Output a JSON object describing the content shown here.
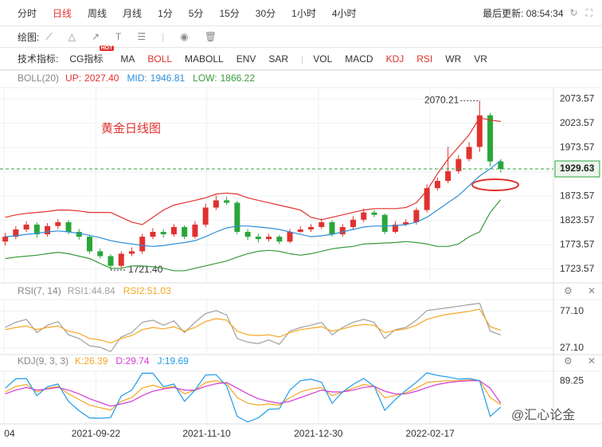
{
  "toolbar": {
    "periods": [
      "分时",
      "日线",
      "周线",
      "月线",
      "1分",
      "5分",
      "15分",
      "30分",
      "1小时",
      "4小时"
    ],
    "active_period_index": 1,
    "updated": "最后更新: 08:54:34",
    "draw_label": "绘图:",
    "indicator_label": "技术指标:",
    "indicators": [
      "CG指标",
      "MA",
      "BOLL",
      "MABOLL",
      "ENV",
      "SAR",
      "VOL",
      "MACD",
      "KDJ",
      "RSI",
      "WR",
      "VR"
    ],
    "active_indicator_indexes": [
      2,
      8,
      9
    ],
    "separator_after_index": 5,
    "hot_badge": "HOT"
  },
  "watermark": "@汇心论金",
  "chart_data": [
    {
      "type": "candlestick",
      "title": "黄金日线图",
      "indicator": "BOLL(20)",
      "up_color": "#e0322f",
      "down_color": "#2aa63a",
      "open": [
        1780,
        1790,
        1805,
        1815,
        1795,
        1812,
        1820,
        1800,
        1790,
        1760,
        1750,
        1730,
        1755,
        1760,
        1790,
        1800,
        1795,
        1810,
        1790,
        1815,
        1850,
        1865,
        1860,
        1800,
        1790,
        1785,
        1790,
        1780,
        1800,
        1805,
        1810,
        1820,
        1795,
        1810,
        1825,
        1840,
        1835,
        1800,
        1815,
        1820,
        1845,
        1890,
        1905,
        1925,
        1950,
        1975,
        2040,
        1945
      ],
      "high": [
        1798,
        1812,
        1822,
        1820,
        1818,
        1826,
        1824,
        1806,
        1794,
        1766,
        1754,
        1760,
        1768,
        1796,
        1808,
        1806,
        1816,
        1814,
        1822,
        1858,
        1875,
        1872,
        1864,
        1806,
        1796,
        1796,
        1794,
        1806,
        1812,
        1816,
        1828,
        1824,
        1816,
        1832,
        1848,
        1845,
        1838,
        1822,
        1826,
        1850,
        1898,
        1912,
        1975,
        1958,
        1985,
        2070.21,
        2045,
        1950
      ],
      "low": [
        1772,
        1785,
        1800,
        1788,
        1790,
        1806,
        1795,
        1784,
        1755,
        1745,
        1721.4,
        1726,
        1750,
        1755,
        1785,
        1788,
        1790,
        1785,
        1786,
        1810,
        1845,
        1855,
        1795,
        1783,
        1778,
        1780,
        1775,
        1776,
        1798,
        1800,
        1806,
        1790,
        1790,
        1805,
        1820,
        1830,
        1795,
        1797,
        1812,
        1815,
        1840,
        1885,
        1900,
        1920,
        1945,
        1965,
        1935,
        1922
      ],
      "close": [
        1790,
        1805,
        1815,
        1795,
        1812,
        1820,
        1800,
        1790,
        1760,
        1750,
        1730,
        1755,
        1760,
        1790,
        1800,
        1795,
        1810,
        1790,
        1815,
        1850,
        1865,
        1860,
        1800,
        1790,
        1785,
        1790,
        1780,
        1800,
        1805,
        1810,
        1820,
        1795,
        1810,
        1825,
        1840,
        1835,
        1800,
        1815,
        1820,
        1845,
        1890,
        1905,
        1925,
        1950,
        1975,
        2040,
        1945,
        1929.63
      ],
      "max_label": "2070.21",
      "min_label": "1721.40",
      "series": [
        {
          "name": "UP:",
          "color": "#e0322f",
          "current_label": "2027.40",
          "values": [
            1830,
            1835,
            1838,
            1840,
            1842,
            1845,
            1845,
            1843,
            1840,
            1840,
            1840,
            1830,
            1820,
            1815,
            1830,
            1845,
            1855,
            1860,
            1865,
            1870,
            1878,
            1880,
            1878,
            1870,
            1865,
            1860,
            1855,
            1850,
            1845,
            1830,
            1825,
            1830,
            1835,
            1840,
            1845,
            1848,
            1848,
            1848,
            1850,
            1860,
            1885,
            1920,
            1950,
            1975,
            2000,
            2035,
            2030,
            2027.4
          ]
        },
        {
          "name": "MID:",
          "color": "#2f8fd8",
          "current_label": "1946.81",
          "values": [
            1790,
            1792,
            1795,
            1797,
            1800,
            1802,
            1800,
            1797,
            1793,
            1788,
            1782,
            1778,
            1775,
            1772,
            1770,
            1772,
            1775,
            1778,
            1782,
            1790,
            1800,
            1808,
            1812,
            1812,
            1810,
            1808,
            1805,
            1800,
            1795,
            1790,
            1792,
            1795,
            1800,
            1805,
            1810,
            1812,
            1812,
            1813,
            1815,
            1820,
            1830,
            1845,
            1860,
            1875,
            1895,
            1915,
            1930,
            1946.81
          ]
        },
        {
          "name": "LOW:",
          "color": "#3a9a3a",
          "current_label": "1866.22",
          "values": [
            1745,
            1748,
            1750,
            1752,
            1755,
            1758,
            1755,
            1750,
            1745,
            1735,
            1725,
            1725,
            1730,
            1730,
            1728,
            1725,
            1720,
            1720,
            1725,
            1730,
            1735,
            1740,
            1748,
            1755,
            1760,
            1762,
            1760,
            1755,
            1752,
            1755,
            1760,
            1765,
            1768,
            1770,
            1775,
            1776,
            1777,
            1778,
            1780,
            1778,
            1775,
            1770,
            1770,
            1775,
            1790,
            1800,
            1840,
            1866.22
          ]
        }
      ],
      "xlim": [
        -0.5,
        52
      ],
      "ylim": [
        1695,
        2097
      ],
      "yticks": [
        1723.57,
        1773.57,
        1823.57,
        1873.57,
        1923.57,
        1973.57,
        2023.57,
        2073.57
      ],
      "grid": true
    },
    {
      "type": "line",
      "indicator": "RSI(7, 14)",
      "series": [
        {
          "name": "RSI1:",
          "color": "#a0a0a0",
          "current_label": "44.84",
          "values": [
            55,
            62,
            66,
            48,
            58,
            63,
            45,
            40,
            30,
            28,
            22,
            42,
            48,
            62,
            65,
            58,
            64,
            48,
            62,
            74,
            78,
            72,
            40,
            35,
            33,
            38,
            32,
            50,
            55,
            58,
            62,
            45,
            55,
            62,
            66,
            62,
            40,
            52,
            55,
            65,
            78,
            80,
            82,
            84,
            86,
            88,
            50,
            44.84
          ]
        },
        {
          "name": "RSI2:",
          "color": "#f5a623",
          "current_label": "51.03",
          "values": [
            52,
            55,
            57,
            52,
            55,
            57,
            50,
            47,
            40,
            38,
            34,
            40,
            44,
            52,
            55,
            53,
            56,
            50,
            55,
            63,
            67,
            65,
            50,
            45,
            44,
            45,
            42,
            48,
            52,
            54,
            56,
            50,
            53,
            57,
            59,
            58,
            48,
            51,
            53,
            58,
            66,
            70,
            73,
            75,
            77,
            80,
            56,
            51.03
          ]
        }
      ],
      "xlim": [
        -0.5,
        52
      ],
      "ylim": [
        18,
        93
      ],
      "yticks": [
        {
          "value": 27.1,
          "label": "27.10"
        },
        {
          "value": 77.1,
          "label": "77.10"
        }
      ],
      "grid": true
    },
    {
      "type": "line",
      "indicator": "KDJ(9, 3, 3)",
      "series": [
        {
          "name": "K:",
          "color": "#f5a623",
          "current_label": "26.39",
          "values": [
            60,
            75,
            80,
            60,
            70,
            75,
            55,
            40,
            25,
            18,
            12,
            35,
            45,
            70,
            78,
            70,
            75,
            55,
            65,
            85,
            90,
            82,
            45,
            30,
            25,
            28,
            25,
            45,
            60,
            68,
            72,
            50,
            60,
            70,
            80,
            75,
            45,
            50,
            58,
            70,
            85,
            88,
            90,
            90,
            92,
            90,
            45,
            26.39
          ]
        },
        {
          "name": "D:",
          "color": "#d63ad6",
          "current_label": "29.74",
          "values": [
            55,
            65,
            72,
            65,
            68,
            72,
            65,
            55,
            42,
            32,
            22,
            28,
            35,
            50,
            62,
            68,
            72,
            65,
            65,
            75,
            82,
            85,
            70,
            55,
            42,
            35,
            30,
            35,
            45,
            55,
            65,
            60,
            60,
            65,
            72,
            75,
            62,
            55,
            55,
            62,
            72,
            80,
            85,
            88,
            90,
            90,
            70,
            29.74
          ]
        },
        {
          "name": "J:",
          "color": "#1e9be9",
          "current_label": "19.69",
          "values": [
            70,
            95,
            96,
            50,
            74,
            81,
            35,
            10,
            -9,
            -10,
            -8,
            49,
            65,
            110,
            110,
            74,
            81,
            35,
            65,
            105,
            106,
            76,
            -5,
            -20,
            -9,
            14,
            15,
            65,
            90,
            94,
            86,
            30,
            60,
            80,
            96,
            75,
            11,
            40,
            64,
            86,
            111,
            104,
            100,
            94,
            96,
            90,
            -5,
            19.69
          ]
        }
      ],
      "xlim": [
        -0.5,
        52
      ],
      "ylim": [
        -25,
        115
      ],
      "yticks": [
        89.25
      ],
      "grid": true,
      "xticks": [
        {
          "value": -0.1,
          "label": "04"
        },
        {
          "value": 8.6,
          "label": "2021-09-22"
        },
        {
          "value": 19.1,
          "label": "2021-11-10"
        },
        {
          "value": 29.7,
          "label": "2021-12-30"
        },
        {
          "value": 40.3,
          "label": "2022-02-17"
        }
      ]
    }
  ]
}
